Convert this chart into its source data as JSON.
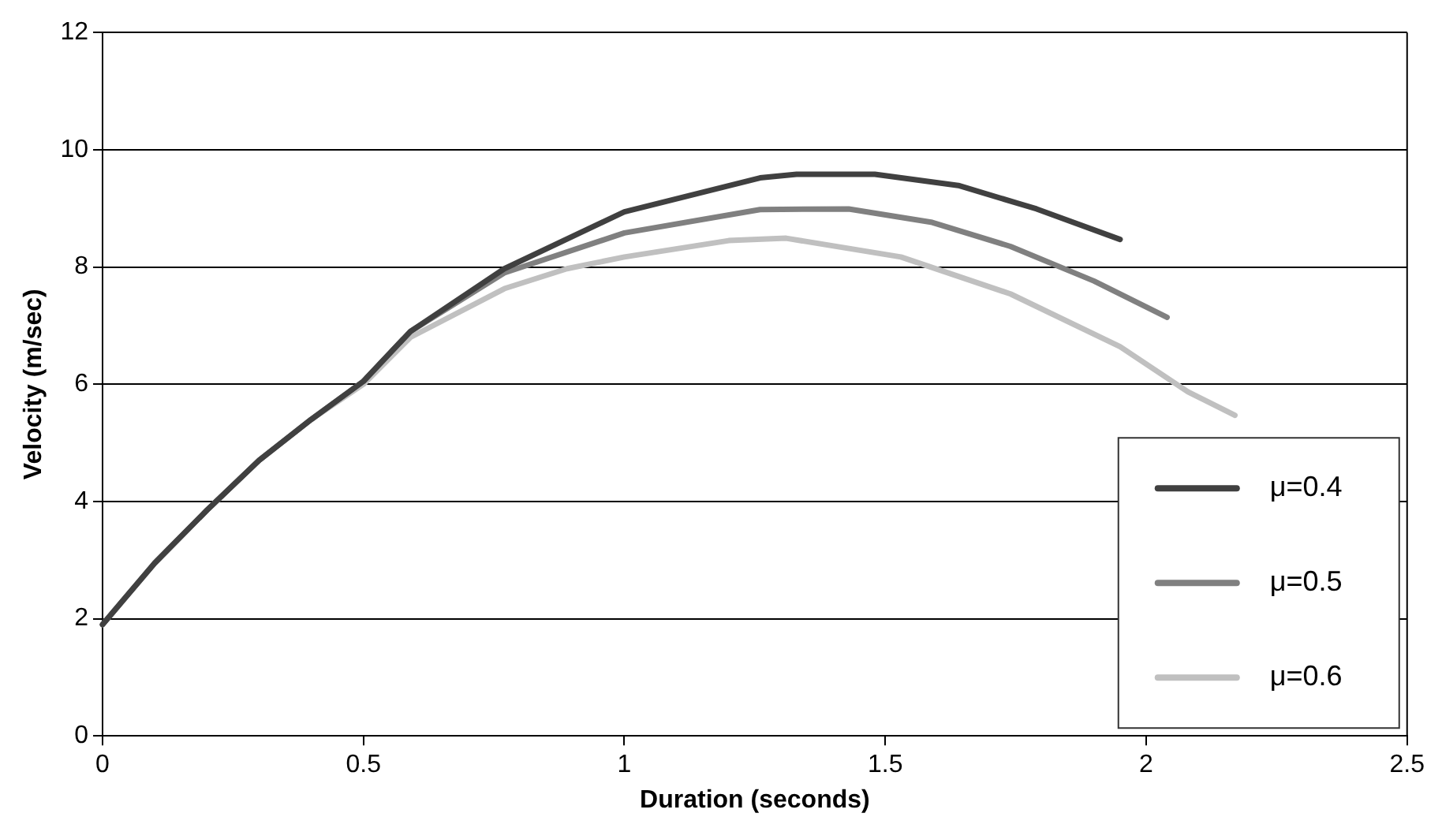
{
  "chart_data": {
    "type": "line",
    "xlabel": "Duration (seconds)",
    "ylabel": "Velocity (m/sec)",
    "xlim": [
      0,
      2.5
    ],
    "xticks": [
      0,
      0.5,
      1,
      1.5,
      2,
      2.5
    ],
    "ylim": [
      0,
      12
    ],
    "yticks": [
      0,
      2,
      4,
      6,
      8,
      10,
      12
    ],
    "grid": "y",
    "legend": "bottom right",
    "marker": "none",
    "line_style": "solid",
    "series": [
      {
        "name": "μ=0.4",
        "color": "#404040",
        "x": [
          0,
          0.1,
          0.2,
          0.3,
          0.4,
          0.5,
          0.59,
          0.77,
          1.0,
          1.26,
          1.33,
          1.48,
          1.64,
          1.79,
          1.95
        ],
        "values": [
          1.9,
          2.95,
          3.85,
          4.7,
          5.4,
          6.05,
          6.9,
          7.97,
          8.94,
          9.52,
          9.58,
          9.58,
          9.39,
          8.99,
          8.47
        ]
      },
      {
        "name": "μ=0.5",
        "color": "#808080",
        "x": [
          0,
          0.1,
          0.2,
          0.3,
          0.4,
          0.5,
          0.59,
          0.77,
          1.0,
          1.26,
          1.43,
          1.59,
          1.74,
          1.9,
          2.04
        ],
        "values": [
          1.9,
          2.95,
          3.85,
          4.7,
          5.4,
          6.05,
          6.9,
          7.9,
          8.58,
          8.98,
          8.99,
          8.76,
          8.35,
          7.76,
          7.14
        ]
      },
      {
        "name": "μ=0.6",
        "color": "#c0c0c0",
        "x": [
          0,
          0.1,
          0.2,
          0.3,
          0.4,
          0.5,
          0.59,
          0.77,
          0.89,
          1.0,
          1.2,
          1.31,
          1.53,
          1.74,
          1.95,
          2.08,
          2.17
        ],
        "values": [
          1.9,
          2.95,
          3.85,
          4.7,
          5.4,
          6.0,
          6.8,
          7.63,
          7.97,
          8.17,
          8.45,
          8.49,
          8.17,
          7.54,
          6.64,
          5.87,
          5.47
        ]
      }
    ]
  }
}
